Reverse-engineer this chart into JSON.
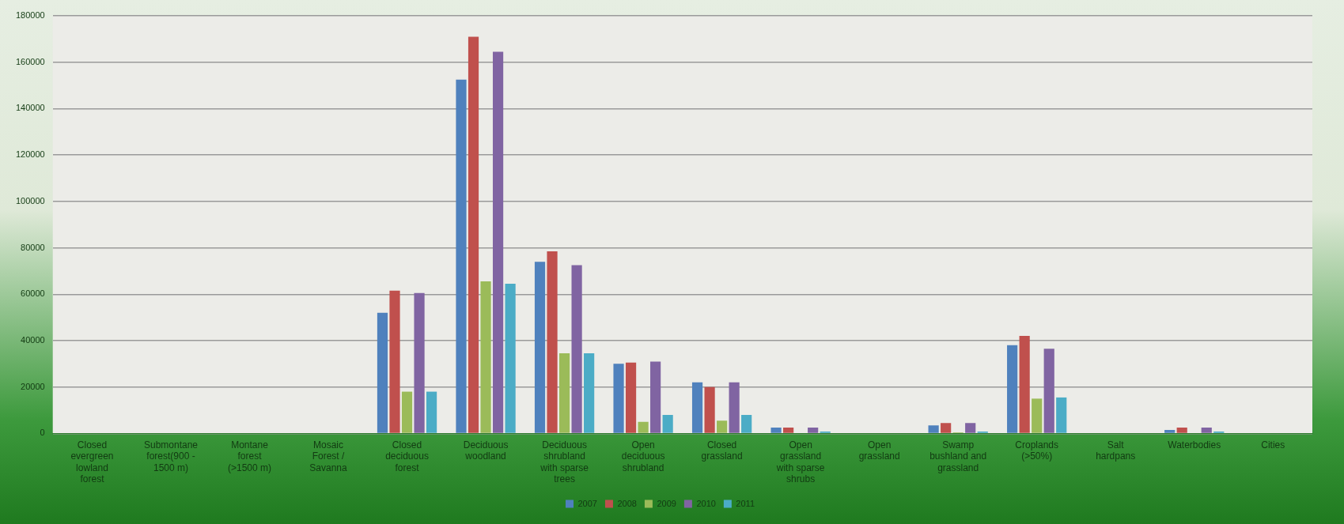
{
  "chart_data": {
    "type": "bar",
    "categories": [
      "Closed evergreen lowland forest",
      "Submontane forest(900 - 1500 m)",
      "Montane forest (>1500 m)",
      "Mosaic Forest / Savanna",
      "Closed deciduous forest",
      "Deciduous woodland",
      "Deciduous shrubland with sparse trees",
      "Open deciduous shrubland",
      "Closed grassland",
      "Open grassland with sparse shrubs",
      "Open grassland",
      "Swamp bushland and grassland",
      "Croplands (>50%)",
      "Salt hardpans",
      "Waterbodies",
      "Cities"
    ],
    "series": [
      {
        "name": "2007",
        "color": "#4f81bd",
        "values": [
          0,
          0,
          0,
          0,
          52000,
          152500,
          74000,
          30000,
          22000,
          2500,
          0,
          3500,
          38000,
          0,
          1500,
          0
        ]
      },
      {
        "name": "2008",
        "color": "#c0504d",
        "values": [
          0,
          0,
          0,
          0,
          61500,
          171000,
          78500,
          30500,
          20000,
          2500,
          0,
          4500,
          42000,
          0,
          2500,
          0
        ]
      },
      {
        "name": "2009",
        "color": "#9bbb59",
        "values": [
          0,
          0,
          0,
          0,
          18000,
          65500,
          34500,
          5000,
          5500,
          null,
          0,
          500,
          15000,
          0,
          null,
          0
        ]
      },
      {
        "name": "2010",
        "color": "#8064a2",
        "values": [
          0,
          0,
          0,
          0,
          60500,
          164500,
          72500,
          31000,
          22000,
          2500,
          0,
          4500,
          36500,
          0,
          2500,
          0
        ]
      },
      {
        "name": "2011",
        "color": "#4bacc6",
        "values": [
          0,
          0,
          0,
          0,
          18000,
          64500,
          34500,
          8000,
          8000,
          800,
          0,
          800,
          15500,
          0,
          800,
          0
        ]
      }
    ],
    "ylim": [
      0,
      180000
    ],
    "yticks": [
      0,
      20000,
      40000,
      60000,
      80000,
      100000,
      120000,
      140000,
      160000,
      180000
    ],
    "grid": "y",
    "legend": "bottom"
  }
}
